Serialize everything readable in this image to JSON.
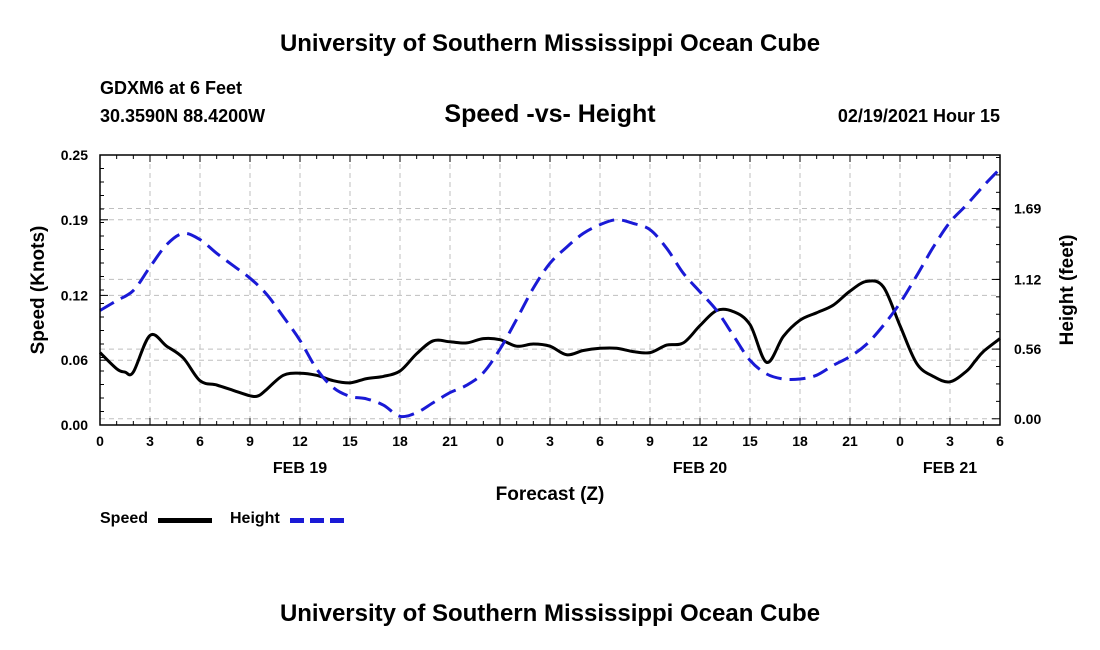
{
  "page": {
    "title_top": "University of Southern Mississippi Ocean Cube",
    "title_bottom": "University of Southern Mississippi Ocean Cube",
    "station": "GDXM6 at 6 Feet",
    "coords": "30.3590N 88.4200W",
    "subtitle": "Speed -vs- Height",
    "timestamp": "02/19/2021 Hour 15"
  },
  "colors": {
    "speed": "#000000",
    "height": "#1a1ad6",
    "grid": "#bfbfbf"
  },
  "legend": [
    {
      "label": "Speed",
      "color": "#000000",
      "style": "solid"
    },
    {
      "label": "Height",
      "color": "#1a1ad6",
      "style": "dashed"
    }
  ],
  "chart_data": {
    "type": "line",
    "xlabel": "Forecast (Z)",
    "ylabel": "Speed (Knots)",
    "y2label": "Height (feet)",
    "xlim": [
      0,
      54
    ],
    "ylim": [
      0,
      0.25
    ],
    "y2lim": [
      -0.05,
      2.12
    ],
    "x_ticks": [
      {
        "x": 0,
        "label": "0"
      },
      {
        "x": 3,
        "label": "3"
      },
      {
        "x": 6,
        "label": "6"
      },
      {
        "x": 9,
        "label": "9"
      },
      {
        "x": 12,
        "label": "12"
      },
      {
        "x": 15,
        "label": "15"
      },
      {
        "x": 18,
        "label": "18"
      },
      {
        "x": 21,
        "label": "21"
      },
      {
        "x": 24,
        "label": "0"
      },
      {
        "x": 27,
        "label": "3"
      },
      {
        "x": 30,
        "label": "6"
      },
      {
        "x": 33,
        "label": "9"
      },
      {
        "x": 36,
        "label": "12"
      },
      {
        "x": 39,
        "label": "15"
      },
      {
        "x": 42,
        "label": "18"
      },
      {
        "x": 45,
        "label": "21"
      },
      {
        "x": 48,
        "label": "0"
      },
      {
        "x": 51,
        "label": "3"
      },
      {
        "x": 54,
        "label": "6"
      }
    ],
    "date_labels": [
      {
        "x": 12,
        "label": "FEB 19"
      },
      {
        "x": 36,
        "label": "FEB 20"
      },
      {
        "x": 51,
        "label": "FEB 21"
      }
    ],
    "y_ticks": [
      {
        "v": 0.0,
        "label": "0.00"
      },
      {
        "v": 0.06,
        "label": "0.06"
      },
      {
        "v": 0.12,
        "label": "0.12"
      },
      {
        "v": 0.19,
        "label": "0.19"
      },
      {
        "v": 0.25,
        "label": "0.25"
      }
    ],
    "y2_ticks": [
      {
        "v": 0.0,
        "label": "0.00"
      },
      {
        "v": 0.56,
        "label": "0.56"
      },
      {
        "v": 1.12,
        "label": "1.12"
      },
      {
        "v": 1.69,
        "label": "1.69"
      }
    ],
    "series": [
      {
        "name": "Speed",
        "axis": "left",
        "style": "solid",
        "x": [
          0,
          1,
          1.5,
          2,
          3,
          4,
          5,
          6,
          7,
          8,
          9,
          9.5,
          10,
          11,
          12,
          13,
          14,
          15,
          16,
          17,
          18,
          19,
          20,
          21,
          22,
          23,
          24,
          25,
          26,
          27,
          28,
          29,
          30,
          31,
          32,
          33,
          34,
          35,
          36,
          37,
          38,
          39,
          40,
          41,
          42,
          43,
          44,
          45,
          46,
          47,
          48,
          49,
          50,
          51,
          52,
          52.5,
          53,
          54
        ],
        "values": [
          0.067,
          0.052,
          0.049,
          0.049,
          0.083,
          0.073,
          0.062,
          0.041,
          0.037,
          0.032,
          0.027,
          0.027,
          0.033,
          0.046,
          0.048,
          0.046,
          0.041,
          0.039,
          0.043,
          0.045,
          0.05,
          0.066,
          0.078,
          0.077,
          0.076,
          0.08,
          0.079,
          0.073,
          0.075,
          0.073,
          0.065,
          0.069,
          0.071,
          0.071,
          0.068,
          0.067,
          0.074,
          0.076,
          0.092,
          0.106,
          0.105,
          0.093,
          0.058,
          0.082,
          0.097,
          0.104,
          0.111,
          0.124,
          0.133,
          0.128,
          0.092,
          0.057,
          0.045,
          0.04,
          0.05,
          0.059,
          0.068,
          0.08
        ]
      },
      {
        "name": "Height",
        "axis": "right",
        "style": "dashed",
        "x": [
          0,
          1,
          2,
          3,
          4,
          5,
          6,
          7,
          8,
          9,
          10,
          11,
          12,
          13,
          14,
          15,
          16,
          17,
          18,
          19,
          20,
          21,
          22,
          23,
          24,
          25,
          26,
          27,
          28,
          29,
          30,
          31,
          32,
          33,
          34,
          35,
          36,
          37,
          38,
          39,
          40,
          41,
          42,
          43,
          44,
          45,
          46,
          47,
          48,
          49,
          50,
          51,
          52,
          53,
          54
        ],
        "values": [
          0.87,
          0.95,
          1.03,
          1.22,
          1.4,
          1.49,
          1.44,
          1.33,
          1.23,
          1.13,
          1.0,
          0.82,
          0.63,
          0.4,
          0.25,
          0.18,
          0.16,
          0.11,
          0.02,
          0.05,
          0.13,
          0.21,
          0.27,
          0.37,
          0.56,
          0.8,
          1.05,
          1.25,
          1.38,
          1.49,
          1.56,
          1.6,
          1.57,
          1.52,
          1.37,
          1.17,
          1.02,
          0.87,
          0.67,
          0.47,
          0.36,
          0.32,
          0.32,
          0.35,
          0.43,
          0.5,
          0.6,
          0.75,
          0.93,
          1.15,
          1.38,
          1.58,
          1.72,
          1.87,
          2.01
        ]
      }
    ]
  }
}
